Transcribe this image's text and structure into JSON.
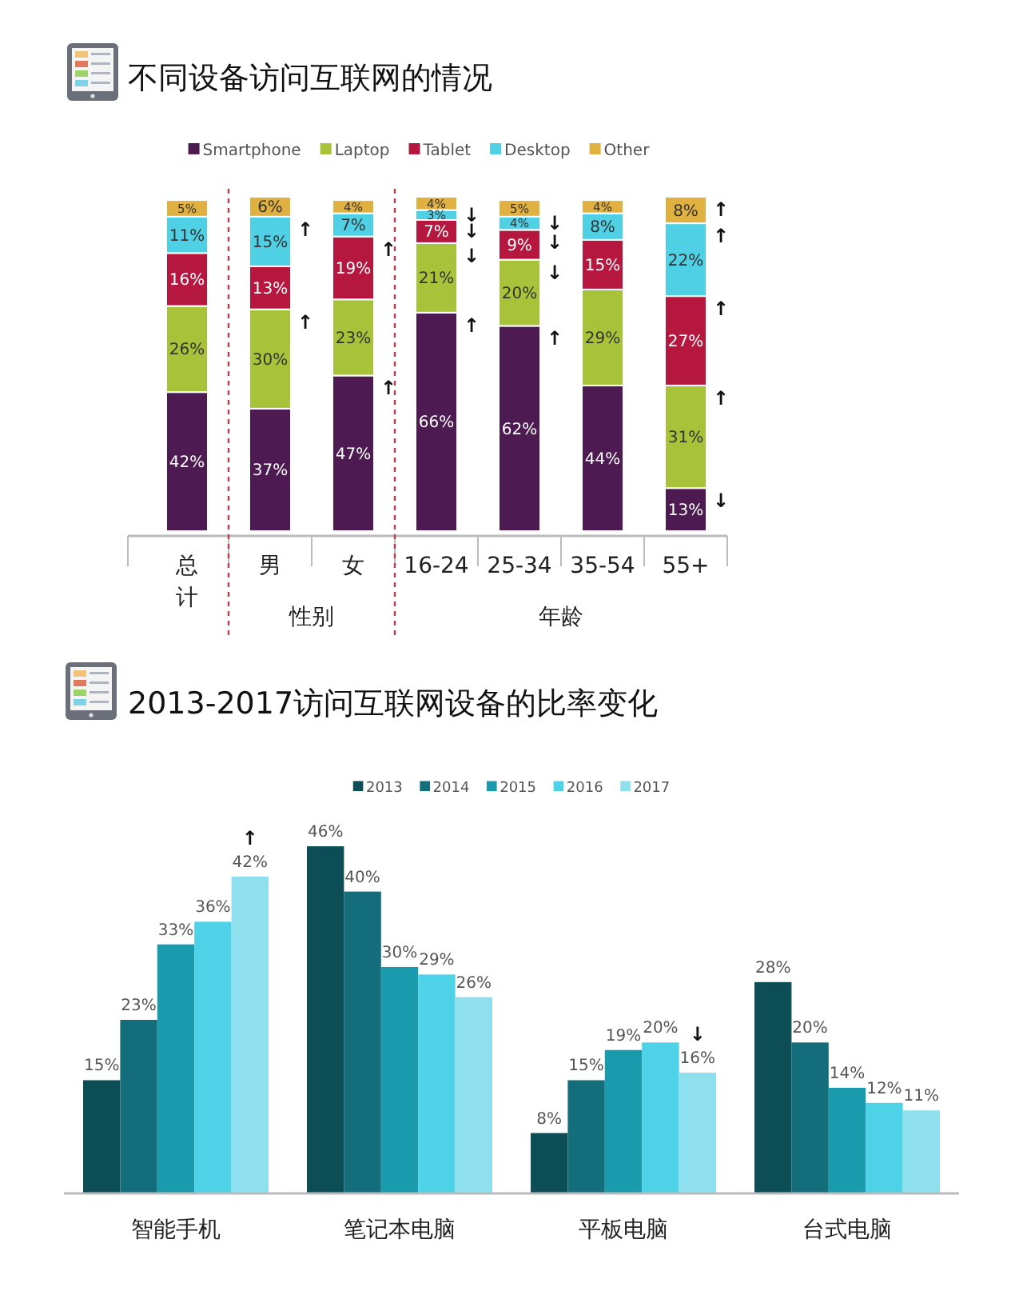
{
  "chart_data": [
    {
      "type": "bar",
      "stacked": true,
      "title": "不同设备访问互联网的情况",
      "categories": [
        "总计",
        "男",
        "女",
        "16-24",
        "25-34",
        "35-54",
        "55+"
      ],
      "legend": "top",
      "series": [
        {
          "name": "Smartphone",
          "color": "#4e1a52",
          "values": [
            42,
            37,
            47,
            66,
            62,
            44,
            13
          ],
          "value_labels": [
            "42%",
            "37%",
            "47%",
            "66%",
            "62%",
            "44%",
            "13%"
          ]
        },
        {
          "name": "Laptop",
          "color": "#a8c23a",
          "values": [
            26,
            30,
            23,
            21,
            20,
            29,
            31
          ],
          "value_labels": [
            "26%",
            "30%",
            "23%",
            "21%",
            "20%",
            "29%",
            "31%"
          ]
        },
        {
          "name": "Tablet",
          "color": "#b5173f",
          "values": [
            16,
            13,
            19,
            7,
            9,
            15,
            27
          ],
          "value_labels": [
            "16%",
            "13%",
            "19%",
            "7%",
            "9%",
            "15%",
            "27%"
          ]
        },
        {
          "name": "Desktop",
          "color": "#4fd0e4",
          "values": [
            11,
            15,
            7,
            3,
            4,
            8,
            22
          ],
          "value_labels": [
            "11%",
            "15%",
            "7%",
            "3%",
            "4%",
            "8%",
            "22%"
          ]
        },
        {
          "name": "Other",
          "color": "#e0b040",
          "values": [
            5,
            6,
            4,
            4,
            5,
            4,
            8
          ],
          "value_labels": [
            "5%",
            "6%",
            "4%",
            "4%",
            "5%",
            "4%",
            "8%"
          ]
        }
      ],
      "annotations": [
        "性别",
        "年龄",
        {
          "text": "↑",
          "x": "男",
          "y": 95
        },
        {
          "text": "↑",
          "x": "男",
          "y": 67
        },
        {
          "text": "↑",
          "x": "女",
          "y": 89
        },
        {
          "text": "↑",
          "x": "女",
          "y": 47
        },
        {
          "text": "↓",
          "x": "16-24",
          "y": 97
        },
        {
          "text": "↓",
          "x": "16-24",
          "y": 94
        },
        {
          "text": "↓",
          "x": "16-24",
          "y": 87
        },
        {
          "text": "↑",
          "x": "16-24",
          "y": 66
        },
        {
          "text": "↓",
          "x": "25-34",
          "y": 95
        },
        {
          "text": "↓",
          "x": "25-34",
          "y": 91
        },
        {
          "text": "↓",
          "x": "25-34",
          "y": 82
        },
        {
          "text": "↑",
          "x": "25-34",
          "y": 62
        },
        {
          "text": "↑",
          "x": "55+",
          "y": 101
        },
        {
          "text": "↑",
          "x": "55+",
          "y": 93
        },
        {
          "text": "↑",
          "x": "55+",
          "y": 71
        },
        {
          "text": "↑",
          "x": "55+",
          "y": 44
        },
        {
          "text": "↓",
          "x": "55+",
          "y": 13
        }
      ]
    },
    {
      "type": "bar",
      "title": "2013-2017访问互联网设备的比率变化",
      "categories": [
        "智能手机",
        "笔记本电脑",
        "平板电脑",
        "台式电脑"
      ],
      "legend": "top",
      "series": [
        {
          "name": "2013",
          "color": "#0d4d56",
          "values": [
            15,
            46,
            8,
            28
          ],
          "value_labels": [
            "15%",
            "46%",
            "8%",
            "28%"
          ]
        },
        {
          "name": "2014",
          "color": "#136d7a",
          "values": [
            23,
            40,
            15,
            20
          ],
          "value_labels": [
            "23%",
            "40%",
            "15%",
            "20%"
          ]
        },
        {
          "name": "2015",
          "color": "#1a9aad",
          "values": [
            33,
            30,
            19,
            14
          ],
          "value_labels": [
            "33%",
            "30%",
            "19%",
            "14%"
          ]
        },
        {
          "name": "2016",
          "color": "#4dd2e8",
          "values": [
            36,
            29,
            20,
            12
          ],
          "value_labels": [
            "36%",
            "29%",
            "20%",
            "12%"
          ]
        },
        {
          "name": "2017",
          "color": "#8fe0ee",
          "values": [
            42,
            26,
            16,
            11
          ],
          "value_labels": [
            "42%",
            "26%",
            "16%",
            "11%"
          ]
        }
      ],
      "annotations": [
        "↑",
        "↓"
      ]
    }
  ]
}
